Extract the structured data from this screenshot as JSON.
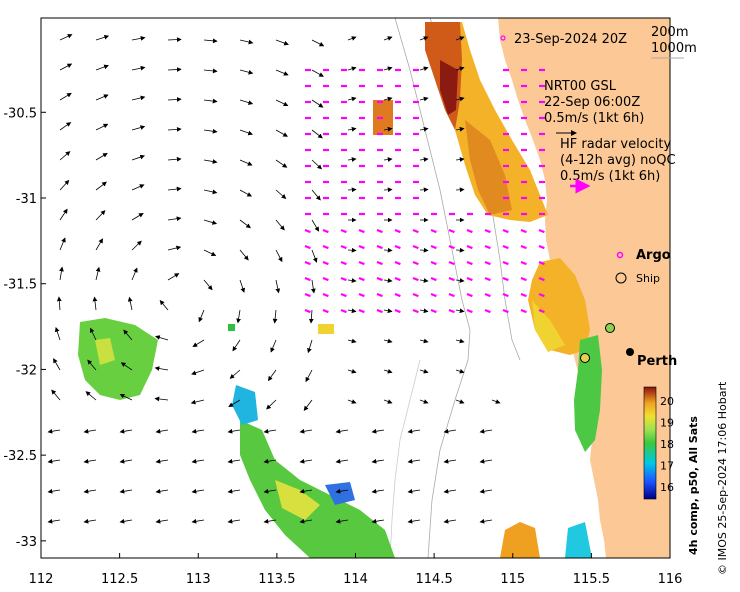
{
  "map": {
    "date_label": "23-Sep-2024 20Z",
    "depth_contours": [
      "200m",
      "1000m"
    ],
    "model_title": "NRT00 GSL",
    "model_time": "22-Sep 06:00Z",
    "model_scale": "0.5m/s (1kt 6h)",
    "hf_title": "HF radar velocity",
    "hf_sub": "(4-12h avg) noQC",
    "hf_scale": "0.5m/s (1kt 6h)",
    "legend_argo": "Argo",
    "legend_ship": "Ship",
    "city": "Perth",
    "colorbar_title": "4h comp, p50, All Sats",
    "colorbar_ticks": [
      "20",
      "19",
      "18",
      "17",
      "16"
    ],
    "credit": "© IMOS 25-Sep-2024 17:06 Hobart",
    "lon_ticks": [
      "112",
      "112.5",
      "113",
      "113.5",
      "114",
      "114.5",
      "115",
      "115.5",
      "116"
    ],
    "lat_ticks": [
      "-30.5",
      "-31",
      "-31.5",
      "-32",
      "-32.5",
      "-33"
    ],
    "lon_range": [
      112,
      116
    ],
    "lat_range": [
      -33.1,
      -29.95
    ],
    "colors": {
      "land": "#fbc896",
      "argo": "#ff00ff",
      "hf_arrow": "#ff00ff",
      "sst_cold": "#1f4fff",
      "sst_warm": "#a01010"
    }
  }
}
